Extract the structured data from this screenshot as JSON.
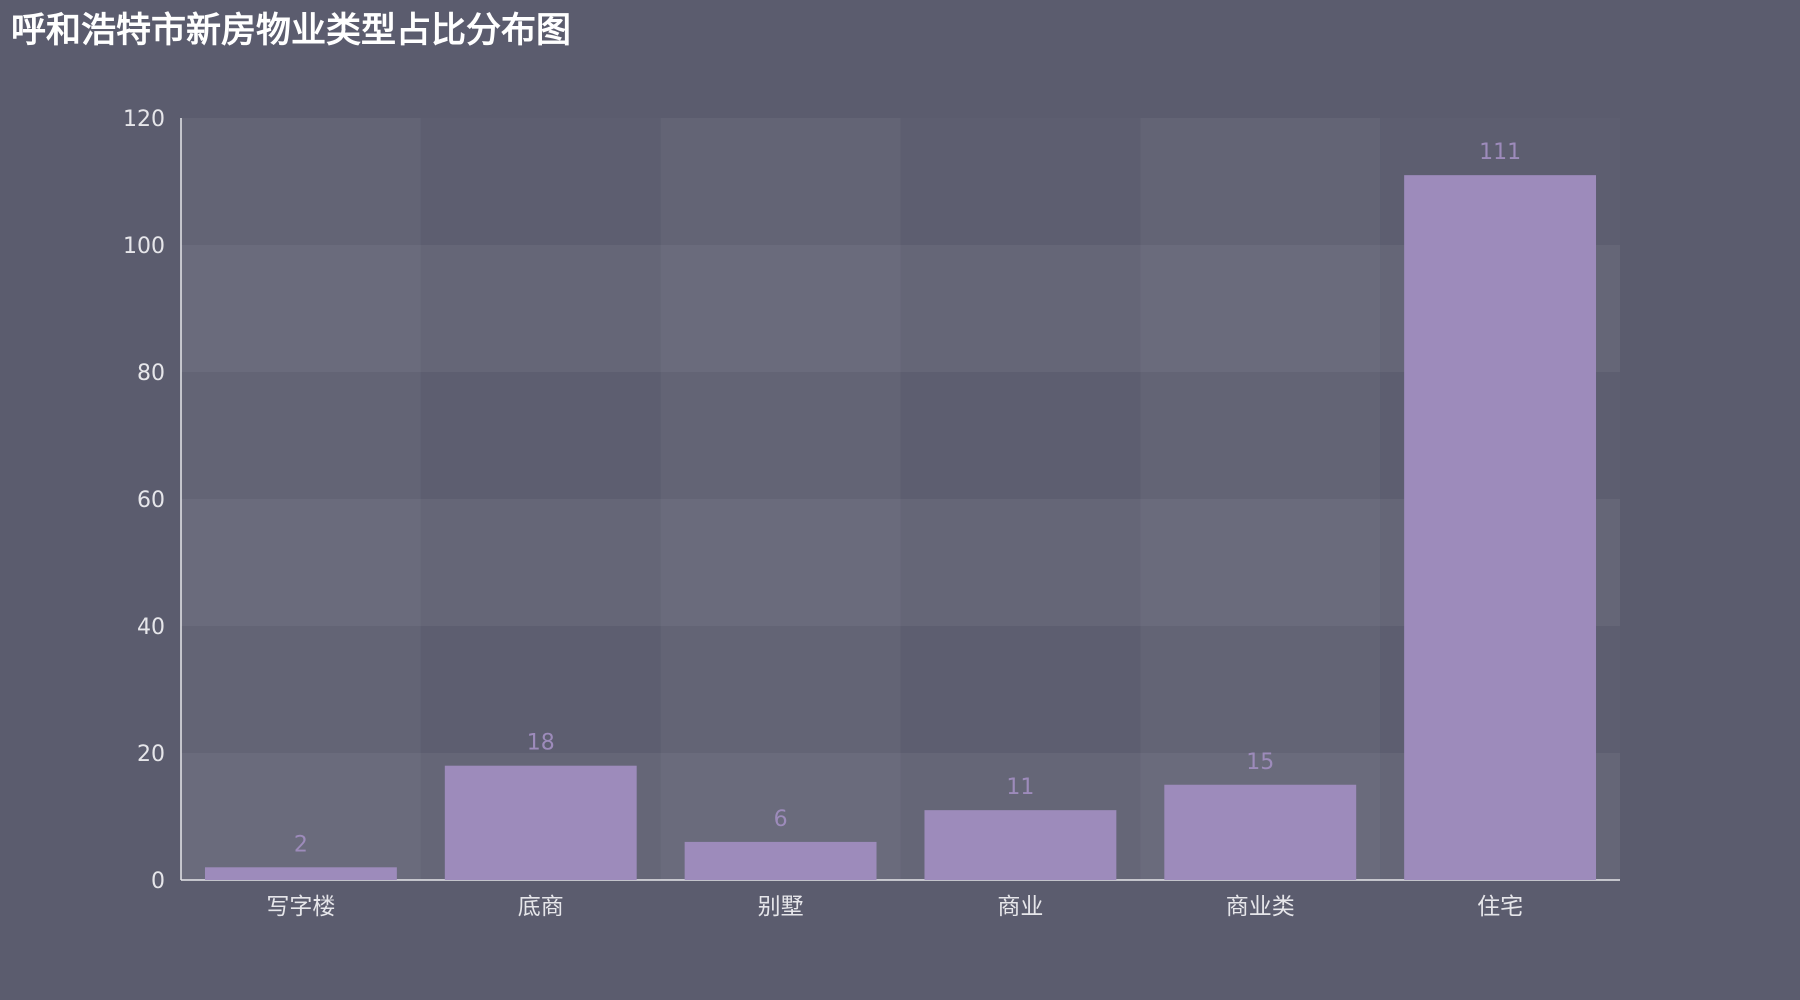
{
  "chart_data": {
    "type": "bar",
    "title": "呼和浩特市新房物业类型占比分布图",
    "xlabel": "",
    "ylabel": "",
    "categories": [
      "写字楼",
      "底商",
      "别墅",
      "商业",
      "商业类",
      "住宅"
    ],
    "values": [
      2,
      18,
      6,
      11,
      15,
      111
    ],
    "ylim": [
      0,
      120
    ],
    "yticks": [
      0,
      20,
      40,
      60,
      80,
      100,
      120
    ],
    "grid": true,
    "legend": "none"
  },
  "colors": {
    "background": "#5b5c6e",
    "bar": "#9d8bbb",
    "data_label": "#9d8bbb",
    "axis": "#e6e6ea",
    "split_area_light": "#6a6b7b",
    "split_area_dark": "#5f6072"
  }
}
